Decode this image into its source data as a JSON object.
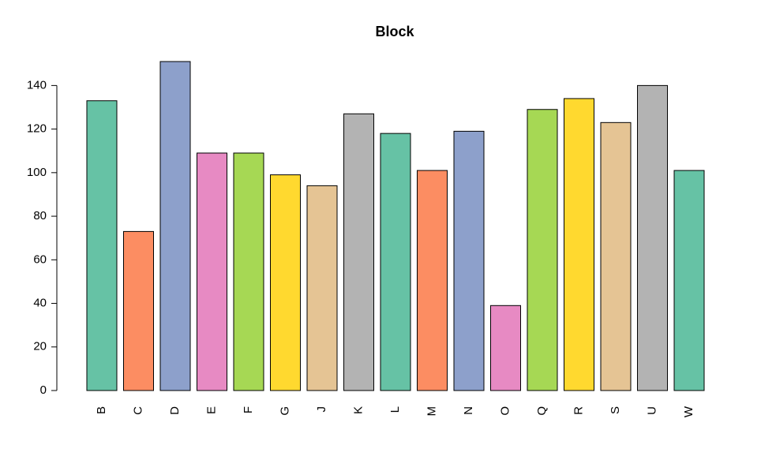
{
  "chart_data": {
    "type": "bar",
    "title": "Block",
    "categories": [
      "B",
      "C",
      "D",
      "E",
      "F",
      "G",
      "J",
      "K",
      "L",
      "M",
      "N",
      "O",
      "Q",
      "R",
      "S",
      "U",
      "W"
    ],
    "values": [
      133,
      73,
      151,
      109,
      109,
      99,
      94,
      127,
      118,
      101,
      119,
      39,
      129,
      134,
      123,
      140,
      101
    ],
    "colors": [
      "#66C2A5",
      "#FC8D62",
      "#8DA0CB",
      "#E78AC3",
      "#A6D854",
      "#FFD92F",
      "#E5C494",
      "#B3B3B3",
      "#66C2A5",
      "#FC8D62",
      "#8DA0CB",
      "#E78AC3",
      "#A6D854",
      "#FFD92F",
      "#E5C494",
      "#B3B3B3",
      "#66C2A5"
    ],
    "ylim": [
      0,
      151
    ],
    "yticks": [
      0,
      20,
      40,
      60,
      80,
      100,
      120,
      140
    ],
    "grid": false
  }
}
